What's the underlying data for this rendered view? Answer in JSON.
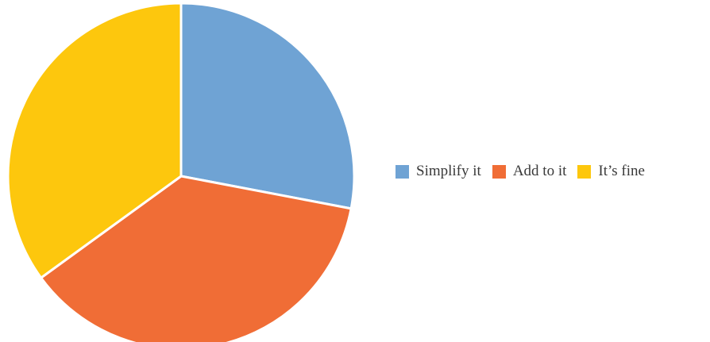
{
  "chart_data": {
    "type": "pie",
    "categories": [
      "Simplify it",
      "Add to it",
      "It’s fine"
    ],
    "values": [
      28,
      37,
      35
    ],
    "colors": [
      "#6FA3D4",
      "#F06D36",
      "#FDC70D"
    ],
    "legend_position": "right",
    "start_angle_deg": 90,
    "direction": "clockwise",
    "title": ""
  }
}
